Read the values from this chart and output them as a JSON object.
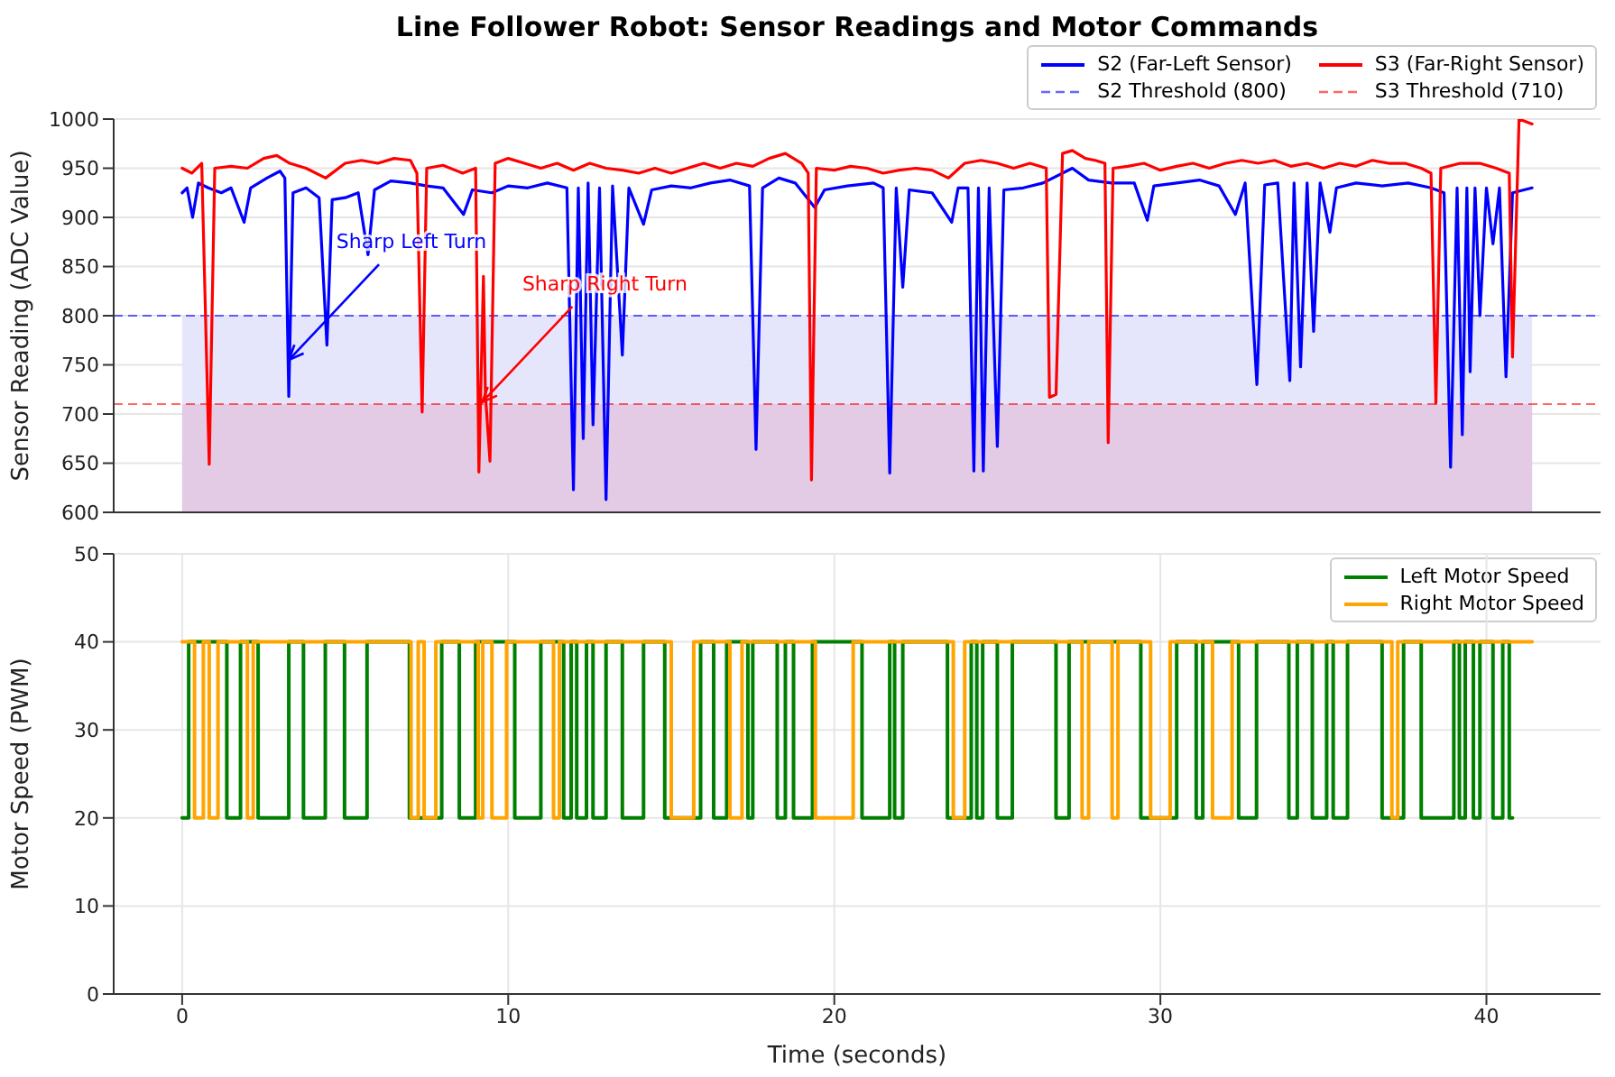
{
  "chart_data": [
    {
      "type": "line",
      "title": "Line Follower Robot: Sensor Readings and Motor Commands",
      "ylabel": "Sensor Reading (ADC Value)",
      "xlim": [
        -2.1,
        43.5
      ],
      "xticks": [
        0,
        10,
        20,
        30,
        40
      ],
      "ylim": [
        600,
        1000
      ],
      "yticks": [
        600,
        650,
        700,
        750,
        800,
        850,
        900,
        950,
        1000
      ],
      "tick_labels": "y",
      "grid": true,
      "legend": "top right",
      "series": [
        {
          "name": "S2 (Far-Left Sensor)",
          "color": "#0000ff",
          "x": [
            0,
            0.15,
            0.32,
            0.5,
            0.8,
            1.2,
            1.5,
            1.9,
            2.1,
            2.6,
            3.0,
            3.15,
            3.27,
            3.4,
            3.8,
            4.2,
            4.44,
            4.6,
            5.0,
            5.4,
            5.7,
            5.9,
            6.4,
            7.0,
            7.5,
            8.0,
            8.63,
            8.9,
            9.5,
            10.0,
            10.6,
            11.2,
            11.8,
            12.0,
            12.15,
            12.3,
            12.45,
            12.6,
            12.8,
            13.0,
            13.2,
            13.5,
            13.7,
            14.15,
            14.4,
            15.0,
            15.6,
            16.2,
            16.8,
            17.4,
            17.6,
            17.8,
            18.3,
            18.8,
            19.4,
            19.7,
            20.4,
            21.2,
            21.5,
            21.7,
            21.9,
            22.1,
            22.3,
            23.0,
            23.6,
            23.8,
            24.1,
            24.28,
            24.42,
            24.57,
            24.75,
            25.0,
            25.2,
            25.8,
            26.4,
            27.3,
            27.8,
            28.5,
            29.2,
            29.6,
            29.8,
            30.5,
            31.2,
            31.8,
            32.3,
            32.6,
            32.96,
            33.2,
            33.6,
            33.97,
            34.1,
            34.3,
            34.5,
            34.7,
            34.9,
            35.2,
            35.4,
            36.0,
            36.8,
            37.6,
            38.3,
            38.7,
            38.9,
            39.1,
            39.26,
            39.4,
            39.5,
            39.65,
            39.8,
            40.0,
            40.2,
            40.4,
            40.6,
            40.8,
            41.4
          ],
          "values": [
            925,
            930,
            900,
            935,
            930,
            925,
            930,
            895,
            930,
            940,
            947,
            940,
            718,
            925,
            930,
            920,
            770,
            918,
            920,
            925,
            862,
            928,
            937,
            935,
            932,
            930,
            903,
            928,
            925,
            932,
            930,
            935,
            930,
            623,
            930,
            675,
            935,
            689,
            930,
            613,
            932,
            760,
            930,
            893,
            928,
            932,
            930,
            935,
            938,
            932,
            664,
            930,
            940,
            935,
            910,
            928,
            932,
            935,
            930,
            640,
            930,
            829,
            928,
            925,
            895,
            930,
            930,
            642,
            930,
            642,
            930,
            667,
            928,
            930,
            935,
            950,
            938,
            935,
            935,
            897,
            932,
            935,
            938,
            932,
            903,
            935,
            730,
            933,
            935,
            734,
            935,
            748,
            935,
            784,
            935,
            885,
            930,
            935,
            932,
            935,
            930,
            925,
            646,
            930,
            679,
            930,
            743,
            930,
            800,
            930,
            873,
            930,
            738,
            925,
            930
          ]
        },
        {
          "name": "S3 (Far-Right Sensor)",
          "color": "#ff0000",
          "x": [
            0,
            0.3,
            0.6,
            0.83,
            1.0,
            1.5,
            2.0,
            2.5,
            2.9,
            3.3,
            3.8,
            4.4,
            5.0,
            5.5,
            6.0,
            6.5,
            7.0,
            7.2,
            7.36,
            7.5,
            8.0,
            8.6,
            9.0,
            9.1,
            9.24,
            9.3,
            9.44,
            9.6,
            10.0,
            10.5,
            11.0,
            11.5,
            12.0,
            12.5,
            13.0,
            13.5,
            14.0,
            14.5,
            15.0,
            15.5,
            16.0,
            16.5,
            17.0,
            17.5,
            18.0,
            18.5,
            19.0,
            19.2,
            19.3,
            19.45,
            20.0,
            20.5,
            21.0,
            21.5,
            22.0,
            22.5,
            23.0,
            23.5,
            24.0,
            24.5,
            25.0,
            25.5,
            26.0,
            26.5,
            26.6,
            26.8,
            27.0,
            27.3,
            27.7,
            28.0,
            28.3,
            28.4,
            28.55,
            29.0,
            29.5,
            30.0,
            30.5,
            31.0,
            31.5,
            32.0,
            32.5,
            33.0,
            33.5,
            34.0,
            34.5,
            35.0,
            35.5,
            36.0,
            36.5,
            37.0,
            37.5,
            38.0,
            38.3,
            38.45,
            38.6,
            39.2,
            39.8,
            40.3,
            40.7,
            40.8,
            41.0,
            41.4
          ],
          "values": [
            950,
            945,
            955,
            649,
            950,
            952,
            950,
            960,
            963,
            955,
            950,
            940,
            955,
            958,
            955,
            960,
            958,
            945,
            702,
            950,
            953,
            945,
            950,
            641,
            840,
            720,
            652,
            955,
            960,
            955,
            950,
            955,
            948,
            955,
            950,
            948,
            945,
            950,
            945,
            950,
            955,
            950,
            955,
            952,
            960,
            965,
            955,
            945,
            633,
            950,
            948,
            952,
            950,
            945,
            948,
            950,
            948,
            940,
            955,
            958,
            955,
            950,
            955,
            950,
            717,
            720,
            965,
            968,
            960,
            958,
            955,
            671,
            950,
            952,
            955,
            948,
            952,
            955,
            950,
            955,
            958,
            955,
            958,
            952,
            955,
            950,
            955,
            952,
            958,
            955,
            955,
            950,
            945,
            711,
            950,
            955,
            955,
            950,
            945,
            758,
            1000,
            995
          ]
        }
      ],
      "ref_lines": [
        {
          "axis": "y",
          "value": 800,
          "label": "S2 Threshold (800)",
          "color": "#0000ff",
          "line_style": "dashed"
        },
        {
          "axis": "y",
          "value": 710,
          "label": "S3 Threshold (710)",
          "color": "#ff0000",
          "line_style": "dashed"
        }
      ],
      "bands": [
        {
          "axis": "y",
          "from": 600,
          "to": 800,
          "color": "#e2e2fb"
        },
        {
          "axis": "y",
          "from": 600,
          "to": 710,
          "color": "#e2c8e2"
        }
      ],
      "annotations": [
        {
          "text": "Sharp Left Turn",
          "x": 3.27,
          "y": 755
        },
        {
          "text": "Sharp Right Turn",
          "x": 9.2,
          "y": 712
        }
      ]
    },
    {
      "type": "step",
      "xlabel": "Time (seconds)",
      "ylabel": "Motor Speed (PWM)",
      "xlim": [
        -2.1,
        43.5
      ],
      "xticks": [
        0,
        10,
        20,
        30,
        40
      ],
      "ylim": [
        0,
        50
      ],
      "yticks": [
        0,
        10,
        20,
        30,
        40,
        50
      ],
      "grid": true,
      "legend": "top right",
      "series": [
        {
          "name": "Left Motor Speed",
          "color": "#008000",
          "x": [
            0,
            0.2,
            1.37,
            1.79,
            2.33,
            3.27,
            3.72,
            4.39,
            4.98,
            5.67,
            6.97,
            7.96,
            8.5,
            9.0,
            10.2,
            11.0,
            11.7,
            11.93,
            12.1,
            12.4,
            12.6,
            13.0,
            13.5,
            14.15,
            14.8,
            15.9,
            16.3,
            16.7,
            17.35,
            17.5,
            18.25,
            18.5,
            18.75,
            19.33,
            20.85,
            21.7,
            21.85,
            22.1,
            23.47,
            24.2,
            24.37,
            24.55,
            25.0,
            25.46,
            26.8,
            27.2,
            29.4,
            30.5,
            31.1,
            31.3,
            32.4,
            32.95,
            33.94,
            34.2,
            34.66,
            35.1,
            35.3,
            35.74,
            36.8,
            37.46,
            38.0,
            39.0,
            39.17,
            39.35,
            39.6,
            39.8,
            40.2,
            40.5,
            40.7,
            40.8
          ],
          "values": [
            20,
            40,
            20,
            40,
            20,
            40,
            20,
            40,
            20,
            40,
            20,
            40,
            20,
            40,
            20,
            40,
            20,
            40,
            20,
            40,
            20,
            40,
            20,
            40,
            20,
            40,
            20,
            40,
            20,
            40,
            20,
            40,
            20,
            40,
            20,
            40,
            20,
            40,
            20,
            40,
            20,
            40,
            20,
            40,
            20,
            40,
            20,
            40,
            20,
            40,
            20,
            40,
            20,
            40,
            20,
            40,
            20,
            40,
            20,
            40,
            20,
            40,
            20,
            40,
            20,
            40,
            20,
            40,
            20,
            20
          ]
        },
        {
          "name": "Right Motor Speed",
          "color": "#ffa500",
          "x": [
            0,
            0.38,
            0.65,
            0.83,
            1.1,
            2.0,
            2.18,
            7.02,
            7.24,
            7.42,
            7.78,
            9.08,
            9.22,
            9.5,
            9.95,
            11.39,
            11.57,
            15.0,
            15.69,
            16.8,
            17.17,
            19.42,
            20.58,
            23.65,
            24.0,
            27.6,
            27.8,
            28.52,
            28.7,
            29.7,
            30.3,
            31.6,
            32.2,
            37.1,
            37.28,
            41.4
          ],
          "values": [
            40,
            20,
            40,
            20,
            40,
            20,
            40,
            20,
            40,
            20,
            40,
            20,
            40,
            20,
            40,
            20,
            40,
            20,
            40,
            20,
            40,
            20,
            40,
            20,
            40,
            20,
            40,
            20,
            40,
            20,
            40,
            20,
            40,
            20,
            40,
            40
          ]
        }
      ]
    }
  ]
}
